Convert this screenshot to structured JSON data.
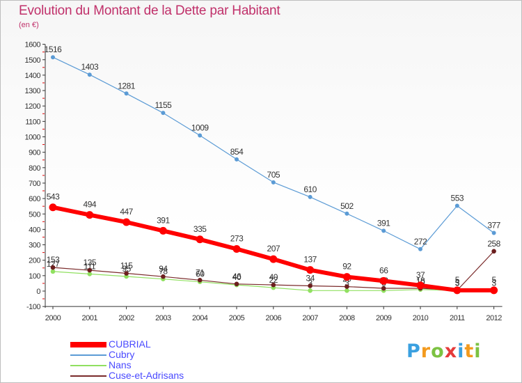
{
  "page": {
    "title": "Evolution du Montant de la Dette par Habitant",
    "subtitle": "(en €)",
    "logo": "Proxiti"
  },
  "colors": {
    "title": "#c0306a",
    "legend_text": "#4a4aff",
    "axis": "#333333",
    "tick_marks": "#e00000"
  },
  "chart_data": {
    "type": "line",
    "title": "Evolution du Montant de la Dette par Habitant",
    "subtitle": "(en €)",
    "x": [
      "2000",
      "2001",
      "2002",
      "2003",
      "2004",
      "2005",
      "2006",
      "2007",
      "2008",
      "2009",
      "2010",
      "2011",
      "2012"
    ],
    "ylim": [
      -100,
      1600
    ],
    "yticks": [
      -100,
      0,
      100,
      200,
      300,
      400,
      500,
      600,
      700,
      800,
      900,
      1000,
      1100,
      1200,
      1300,
      1400,
      1500,
      1600
    ],
    "grid": false,
    "legend_position": "bottom-left",
    "series": [
      {
        "name": "CUBRIAL",
        "color": "#ff0000",
        "values": [
          543,
          494,
          447,
          391,
          335,
          273,
          207,
          137,
          92,
          66,
          37,
          5,
          5
        ],
        "labels": [
          "543",
          "494",
          "447",
          "391",
          "335",
          "273",
          "207",
          "137",
          "92",
          "66",
          "37",
          "5",
          "5"
        ]
      },
      {
        "name": "Cubry",
        "color": "#5b9bd5",
        "values": [
          1516,
          1403,
          1281,
          1155,
          1009,
          854,
          705,
          610,
          502,
          391,
          272,
          553,
          377
        ],
        "labels": [
          "1516",
          "1403",
          "1281",
          "1155",
          "1009",
          "854",
          "705",
          "610",
          "502",
          "391",
          "272",
          "553",
          "377"
        ]
      },
      {
        "name": "Nans",
        "color": "#90e060",
        "values": [
          127,
          111,
          95,
          78,
          60,
          40,
          22,
          3,
          3,
          3,
          10,
          3,
          3
        ],
        "labels": [
          "127",
          "111",
          "95",
          "78",
          "60",
          "40",
          "22",
          "3",
          "3",
          "3",
          "10",
          "3",
          "3"
        ]
      },
      {
        "name": "Cuse-et-Adrisans",
        "color": "#7a2a2a",
        "values": [
          153,
          135,
          115,
          94,
          71,
          46,
          40,
          34,
          29,
          18,
          18,
          5,
          258
        ],
        "labels": [
          "153",
          "135",
          "115",
          "94",
          "71",
          "46",
          "40",
          "34",
          "29",
          "18",
          "18",
          "5",
          "258"
        ]
      }
    ]
  }
}
